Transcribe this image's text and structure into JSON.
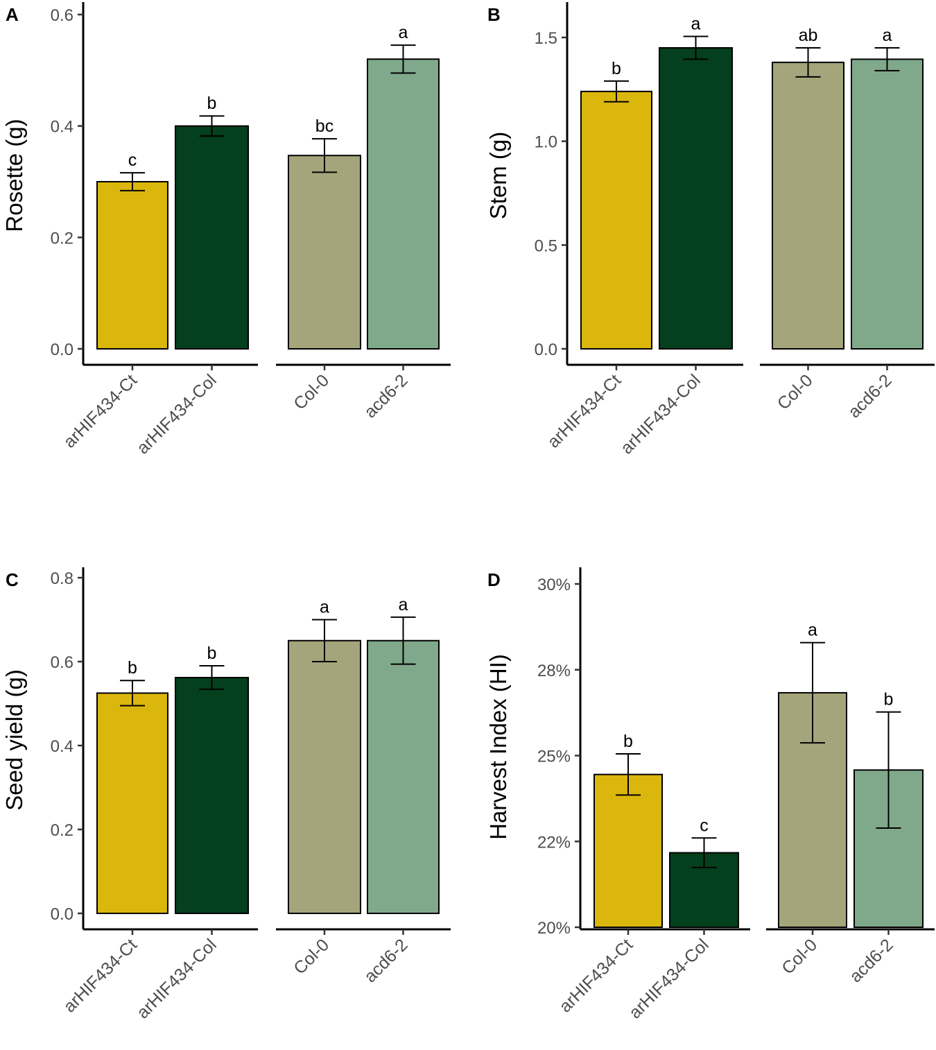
{
  "chart_data": [
    {
      "panel": "A",
      "type": "bar",
      "ylabel": "Rosette (g)",
      "ylim": [
        0,
        0.6
      ],
      "yticks": [
        0.0,
        0.2,
        0.4,
        0.6
      ],
      "ytick_labels": [
        "0.0",
        "0.2",
        "0.4",
        "0.6"
      ],
      "groups": [
        {
          "categories": [
            "arHIF434-Ct",
            "arHIF434-Col"
          ],
          "values": [
            0.3,
            0.4
          ],
          "errors": [
            0.016,
            0.018
          ],
          "letters": [
            "c",
            "b"
          ]
        },
        {
          "categories": [
            "Col-0",
            "acd6-2"
          ],
          "values": [
            0.347,
            0.52
          ],
          "errors": [
            0.03,
            0.025
          ],
          "letters": [
            "bc",
            "a"
          ]
        }
      ]
    },
    {
      "panel": "B",
      "type": "bar",
      "ylabel": "Stem (g)",
      "ylim": [
        0,
        1.65
      ],
      "yticks": [
        0.0,
        0.5,
        1.0,
        1.5
      ],
      "ytick_labels": [
        "0.0",
        "0.5",
        "1.0",
        "1.5"
      ],
      "groups": [
        {
          "categories": [
            "arHIF434-Ct",
            "arHIF434-Col"
          ],
          "values": [
            1.24,
            1.45
          ],
          "errors": [
            0.05,
            0.055
          ],
          "letters": [
            "b",
            "a"
          ]
        },
        {
          "categories": [
            "Col-0",
            "acd6-2"
          ],
          "values": [
            1.38,
            1.395
          ],
          "errors": [
            0.07,
            0.055
          ],
          "letters": [
            "ab",
            "a"
          ]
        }
      ]
    },
    {
      "panel": "C",
      "type": "bar",
      "ylabel": "Seed yield (g)",
      "ylim": [
        0,
        0.8
      ],
      "yticks": [
        0.0,
        0.2,
        0.4,
        0.6,
        0.8
      ],
      "ytick_labels": [
        "0.0",
        "0.2",
        "0.4",
        "0.6",
        "0.8"
      ],
      "groups": [
        {
          "categories": [
            "arHIF434-Ct",
            "arHIF434-Col"
          ],
          "values": [
            0.525,
            0.562
          ],
          "errors": [
            0.03,
            0.028
          ],
          "letters": [
            "b",
            "b"
          ]
        },
        {
          "categories": [
            "Col-0",
            "acd6-2"
          ],
          "values": [
            0.65,
            0.65
          ],
          "errors": [
            0.05,
            0.056
          ],
          "letters": [
            "a",
            "a"
          ]
        }
      ]
    },
    {
      "panel": "D",
      "type": "bar",
      "ylabel": "Harvest Index (HI)",
      "ylim": [
        0.2,
        0.3
      ],
      "yticks": [
        0.2,
        0.225,
        0.25,
        0.275,
        0.3
      ],
      "ytick_labels": [
        "20%",
        "22%",
        "25%",
        "28%",
        "30%"
      ],
      "groups": [
        {
          "categories": [
            "arHIF434-Ct",
            "arHIF434-Col"
          ],
          "values": [
            0.2445,
            0.2217
          ],
          "errors": [
            0.006,
            0.0043
          ],
          "letters": [
            "b",
            "c"
          ]
        },
        {
          "categories": [
            "Col-0",
            "acd6-2"
          ],
          "values": [
            0.2683,
            0.2458
          ],
          "errors": [
            0.0146,
            0.0169
          ],
          "letters": [
            "a",
            "b"
          ]
        }
      ]
    }
  ],
  "colors": {
    "arHIF434-Ct": "#dbb60d",
    "arHIF434-Col": "#04401d",
    "Col-0": "#a4a57b",
    "acd6-2": "#80a98b"
  }
}
